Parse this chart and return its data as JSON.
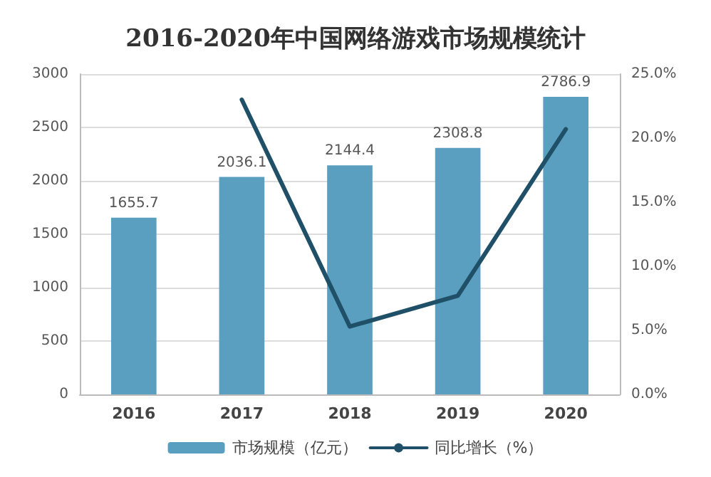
{
  "chart_data": {
    "type": "bar",
    "title": "2016-2020年中国网络游戏市场规模统计",
    "categories": [
      "2016",
      "2017",
      "2018",
      "2019",
      "2020"
    ],
    "series": [
      {
        "name": "市场规模（亿元）",
        "color": "#5b9fc0",
        "values": [
          1655.7,
          2036.1,
          2144.4,
          2308.8,
          2786.9
        ],
        "value_labels": [
          "1655.7",
          "2036.1",
          "2144.4",
          "2308.8",
          "2786.9"
        ]
      },
      {
        "name": "同比增长（%）",
        "type": "line",
        "axis": "y2",
        "color": "#1f5068",
        "values": [
          null,
          23.0,
          5.3,
          7.7,
          20.7
        ]
      }
    ],
    "ylim": [
      0,
      3000
    ],
    "yticks": [
      0,
      500,
      1000,
      1500,
      2000,
      2500,
      3000
    ],
    "y2lim": [
      0,
      25
    ],
    "y2ticks": [
      {
        "value": 0,
        "label": "0.0%"
      },
      {
        "value": 5,
        "label": "5.0%"
      },
      {
        "value": 10,
        "label": "10.0%"
      },
      {
        "value": 15,
        "label": "15.0%"
      },
      {
        "value": 20,
        "label": "20.0%"
      },
      {
        "value": 25,
        "label": "25.0%"
      }
    ],
    "grid": "y",
    "legend": "bottom",
    "marker": "none",
    "line_style": "solid"
  }
}
